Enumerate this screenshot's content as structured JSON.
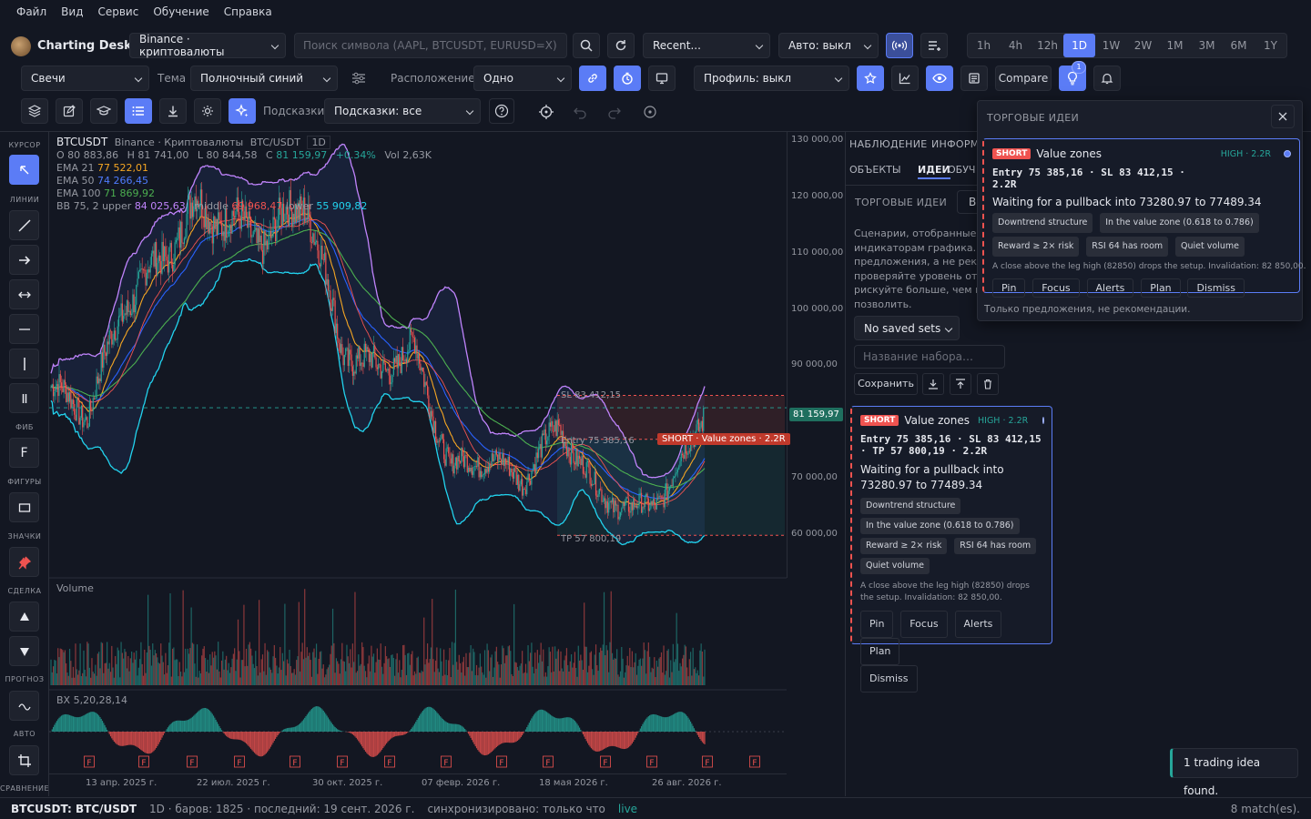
{
  "menu": [
    "Файл",
    "Вид",
    "Сервис",
    "Обучение",
    "Справка"
  ],
  "app": {
    "title": "Charting Desk"
  },
  "toolbar1": {
    "exchange": "Binance · криптовалюты",
    "search_placeholder": "Поиск символа (AAPL, BTCUSDT, EURUSD=X)",
    "recent": "Recent...",
    "auto": "Авто: выкл",
    "timeframes": [
      "1h",
      "4h",
      "12h",
      "1D",
      "1W",
      "2W",
      "1M",
      "3M",
      "6M",
      "1Y"
    ],
    "active_timeframe": "1D"
  },
  "toolbar2": {
    "chart_type": "Свечи",
    "theme_label": "Тема",
    "theme": "Полночный синий",
    "layout_label": "Расположение",
    "layout": "Одно",
    "profile": "Профиль: выкл",
    "compare": "Compare",
    "badge": "1"
  },
  "toolbar3": {
    "hints_label": "Подсказки",
    "hints": "Подсказки: все"
  },
  "left_tools": {
    "captions": [
      "КУРСОР",
      "ЛИНИИ",
      "ФИБ",
      "ФИГУРЫ",
      "ЗНАЧКИ",
      "СДЕЛКА",
      "ПРОГНОЗ",
      "АВТО",
      "СРАВНЕНИЕ"
    ],
    "fib_letter": "F"
  },
  "legend": {
    "symbol": "BTCUSDT",
    "exchange": "Binance · Криптовалюты",
    "pair": "BTC/USDT",
    "tf": "1D",
    "o": "O 80 883,86",
    "h": "H 81 741,00",
    "l": "L 80 844,58",
    "c_label": "C",
    "c": "81 159,97",
    "chg": "+0.34%",
    "vol": "Vol 2,63K",
    "ema21_label": "EMA 21",
    "ema21": "77 522,01",
    "ema50_label": "EMA 50",
    "ema50": "74 266,45",
    "ema100_label": "EMA 100",
    "ema100": "71 869,92",
    "bb_label": "BB 75, 2",
    "bb_upper_label": "upper",
    "bb_upper": "84 025,63",
    "bb_middle_label": "middle",
    "bb_middle": "69 968,47",
    "bb_lower_label": "lower",
    "bb_lower": "55 909,82"
  },
  "price_axis": [
    "130 000,00",
    "120 000,00",
    "110 000,00",
    "100 000,00",
    "90 000,00",
    "70 000,00",
    "60 000,00"
  ],
  "last_price": "81 159,97",
  "trade_labels": {
    "sl": "SL 83 412,15",
    "entry": "Entry 75 385,16",
    "tp": "TP 57 800,19",
    "short": "SHORT · Value zones · 2.2R"
  },
  "subpanes": {
    "volume": "Volume",
    "osc": "BX 5,20,28,14",
    "marker": "F"
  },
  "date_axis": [
    "13 апр. 2025 г.",
    "22 июл. 2025 г.",
    "30 окт. 2025 г.",
    "07 февр. 2026 г.",
    "18 мая 2026 г.",
    "26 авг. 2026 г."
  ],
  "chart_data": {
    "type": "candlestick",
    "symbol": "BTCUSDT",
    "timeframe": "1D",
    "ylim": [
      50000,
      130000
    ],
    "x_range": [
      "2025-03",
      "2026-09"
    ],
    "last_close": 81159.97,
    "levels": {
      "stop_loss": 83412.15,
      "entry": 75385.16,
      "take_profit": 57800.19
    },
    "indicators": {
      "ema21": 77522.01,
      "ema50": 74266.45,
      "ema100": 71869.92,
      "bb_upper": 84025.63,
      "bb_middle": 69968.47,
      "bb_lower": 55909.82
    },
    "approx_close_path": [
      {
        "x": "2025-03",
        "y": 85000
      },
      {
        "x": "2025-04",
        "y": 80000
      },
      {
        "x": "2025-05",
        "y": 100000
      },
      {
        "x": "2025-06",
        "y": 108000
      },
      {
        "x": "2025-07",
        "y": 118000
      },
      {
        "x": "2025-08",
        "y": 115000
      },
      {
        "x": "2025-09",
        "y": 112000
      },
      {
        "x": "2025-10",
        "y": 120000
      },
      {
        "x": "2025-11",
        "y": 92000
      },
      {
        "x": "2025-12",
        "y": 88000
      },
      {
        "x": "2026-01",
        "y": 92000
      },
      {
        "x": "2026-02",
        "y": 70000
      },
      {
        "x": "2026-03",
        "y": 72000
      },
      {
        "x": "2026-04",
        "y": 68000
      },
      {
        "x": "2026-05",
        "y": 78000
      },
      {
        "x": "2026-06",
        "y": 66000
      },
      {
        "x": "2026-07",
        "y": 62000
      },
      {
        "x": "2026-08",
        "y": 66000
      },
      {
        "x": "2026-09",
        "y": 81160
      }
    ],
    "grid": false
  },
  "right_panel": {
    "tabs_row1": [
      "НАБЛЮДЕНИЕ",
      "ИНФОРМ"
    ],
    "tabs_row2": [
      "ОБЪЕКТЫ",
      "ИДЕИ",
      "ОБУЧ"
    ],
    "section": "ТОРГОВЫЕ ИДЕИ",
    "section_btn": "В",
    "description": [
      "Сценарии, отобранные по",
      "индикаторам графика. Это",
      "предложения, а не рекоме",
      "проверяйте уровень отмен",
      "рискуйте больше, чем мож",
      "позволить."
    ],
    "saved_sets": "No saved sets",
    "name_placeholder": "Название набора…",
    "save": "Сохранить"
  },
  "idea": {
    "side": "SHORT",
    "name": "Value zones",
    "conf": "HIGH · 2.2R",
    "levels": "Entry 75 385,16 · SL 83 412,15 · TP 57 800,19 · 2.2R",
    "levels_wrap_a": "Entry 75 385,16 · SL 83 412,15",
    "levels_wrap_b": "· TP 57 800,19 · 2.2R",
    "levels_pop_a": "Entry 75 385,16 · SL 83 412,15 ·",
    "levels_pop_b": "2.2R",
    "headline": "Waiting for a pullback into 73280.97 to 77489.34",
    "chips": [
      "Downtrend structure",
      "In the value zone (0.618 to 0.786)",
      "Reward ≥ 2× risk",
      "RSI 64 has room",
      "Quiet volume"
    ],
    "note": "A close above the leg high (82850) drops the setup. Invalidation: 82 850,00.",
    "actions": [
      "Pin",
      "Focus",
      "Alerts",
      "Plan",
      "Dismiss"
    ]
  },
  "popup": {
    "title": "ТОРГОВЫЕ ИДЕИ",
    "footer": "Только предложения, не рекомендации."
  },
  "toast": "1 trading idea found.",
  "status": {
    "symbol": "BTCUSDT: BTC/USDT",
    "info": "1D · баров: 1825 · последний: 19 сент. 2026 г.",
    "sync": "синхронизировано: только что",
    "live": "live",
    "matches": "8 match(es)."
  },
  "colors": {
    "bg": "#131722",
    "accent": "#5b7cf6",
    "up": "#26a69a",
    "down": "#ef5350",
    "ema21": "#f5a623",
    "ema50": "#2962ff",
    "ema100": "#4caf50",
    "bb": "#c084fc",
    "bb_lower": "#22d3ee"
  }
}
